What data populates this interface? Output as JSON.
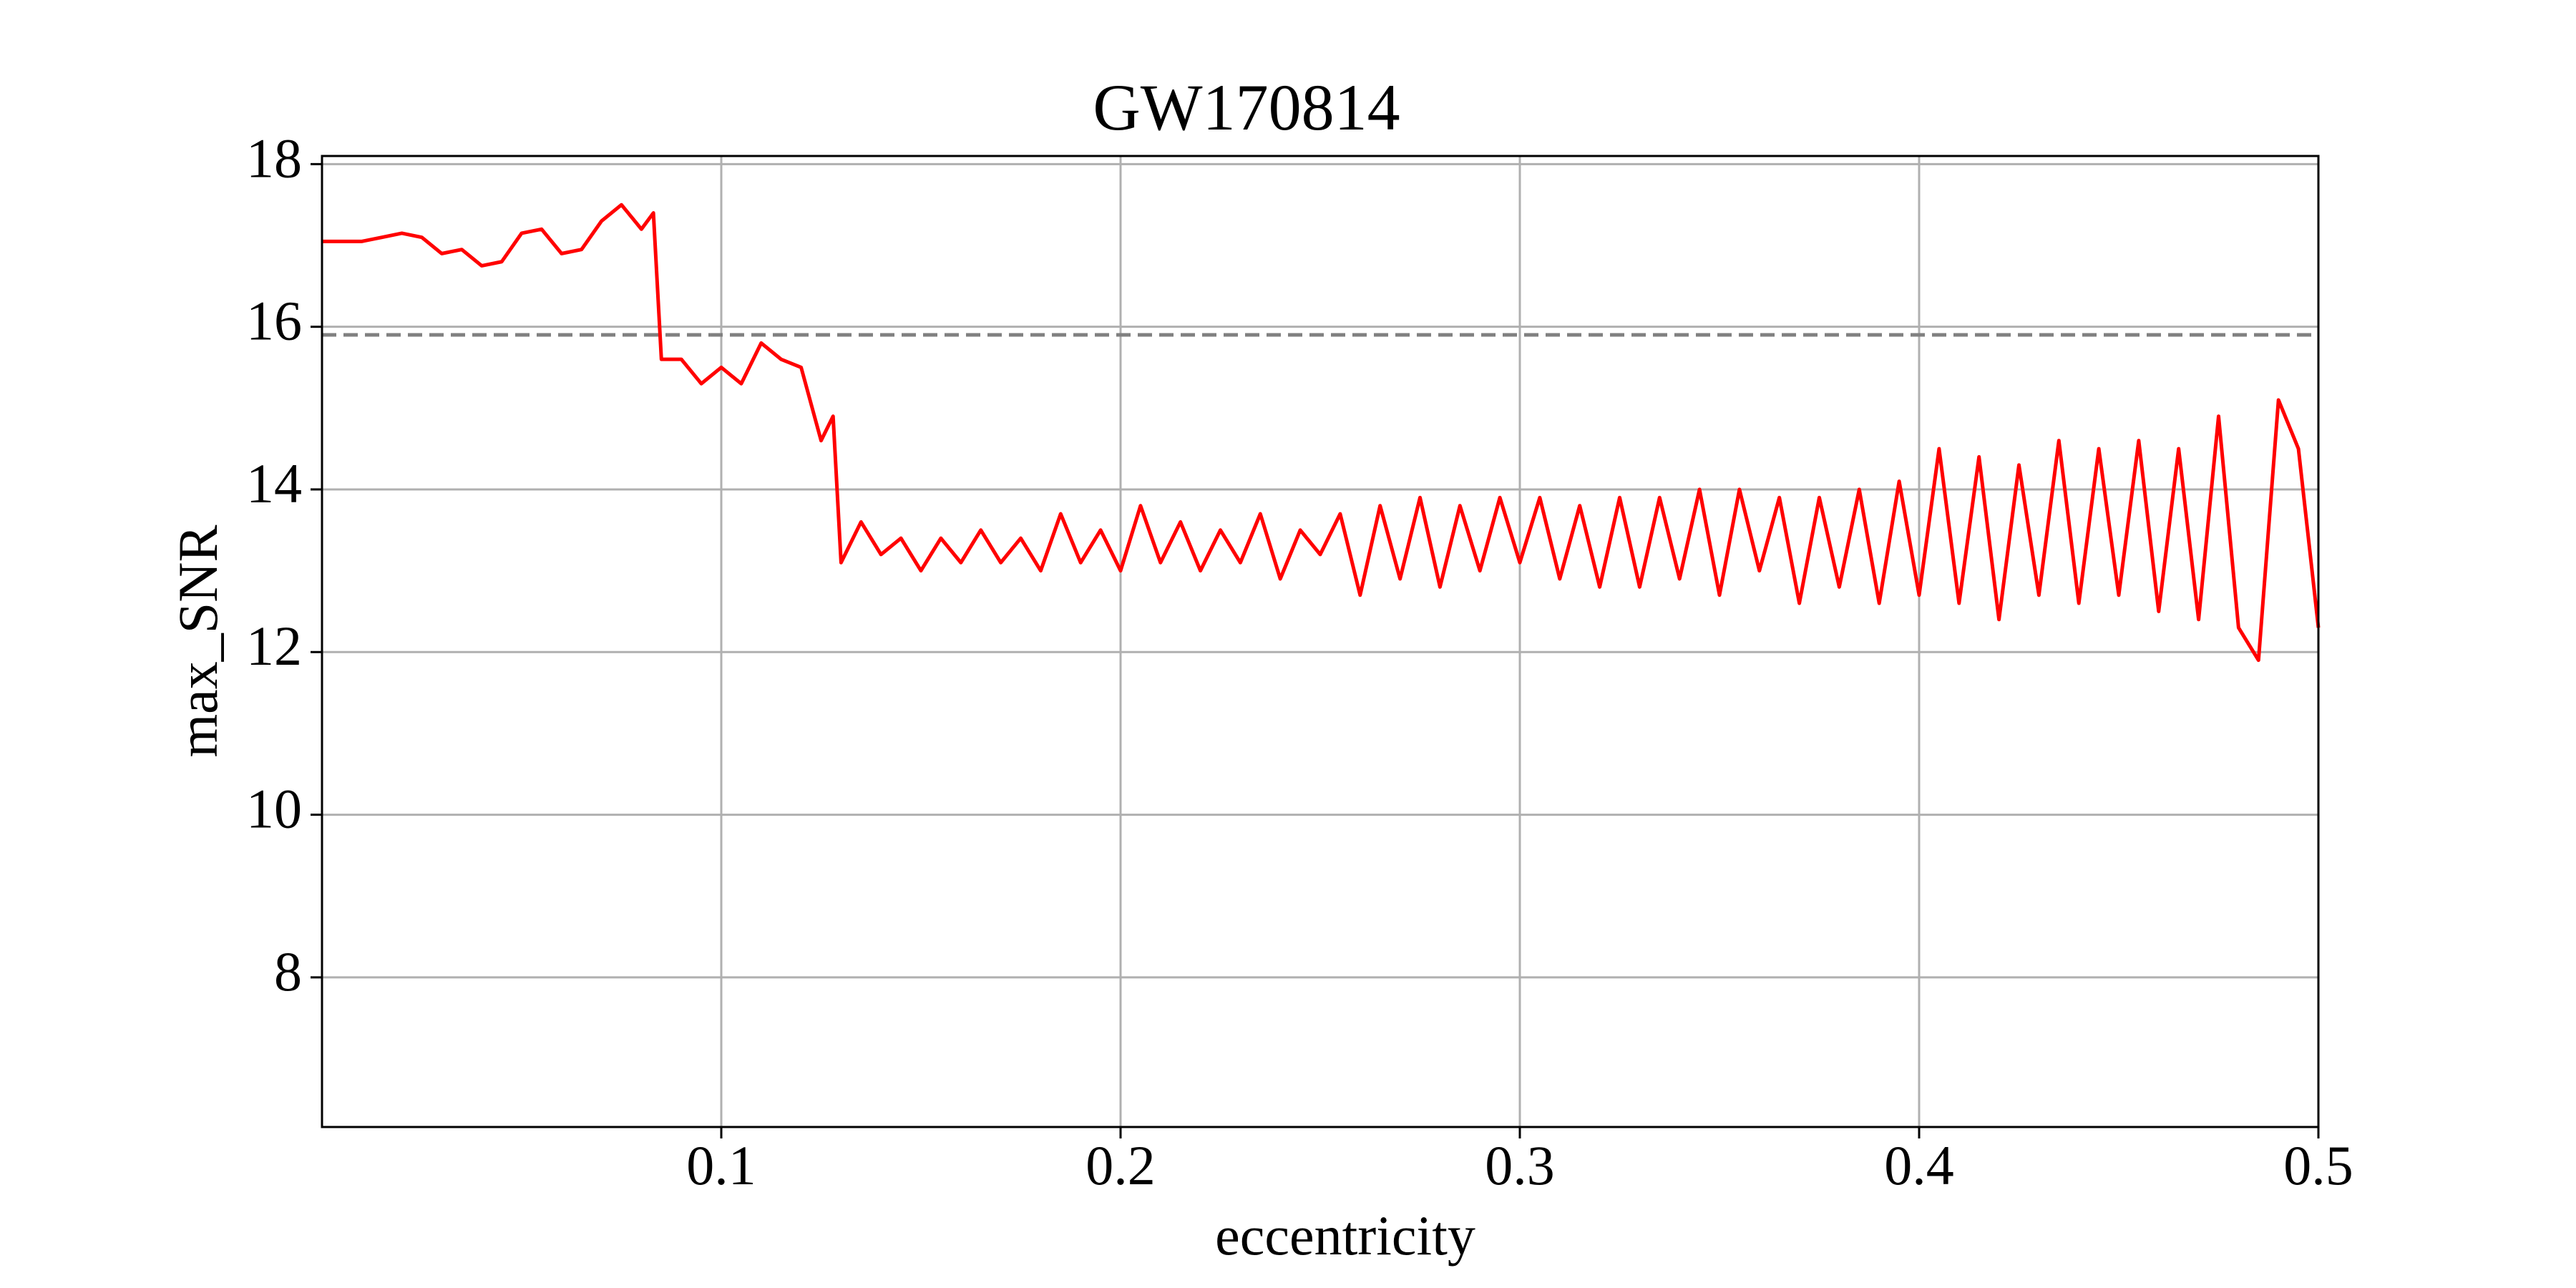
{
  "chart_data": {
    "type": "line",
    "title": "GW170814",
    "x_label": "eccentricity",
    "y_label": "max_SNR",
    "x": [
      0,
      0.005,
      0.01,
      0.015,
      0.02,
      0.025,
      0.03,
      0.035,
      0.04,
      0.045,
      0.05,
      0.055,
      0.06,
      0.065,
      0.07,
      0.075,
      0.08,
      0.083,
      0.085,
      0.09,
      0.095,
      0.1,
      0.105,
      0.11,
      0.115,
      0.12,
      0.125,
      0.128,
      0.13,
      0.135,
      0.14,
      0.145,
      0.15,
      0.155,
      0.16,
      0.165,
      0.17,
      0.175,
      0.18,
      0.185,
      0.19,
      0.195,
      0.2,
      0.205,
      0.21,
      0.215,
      0.22,
      0.225,
      0.23,
      0.235,
      0.24,
      0.245,
      0.25,
      0.255,
      0.26,
      0.265,
      0.27,
      0.275,
      0.28,
      0.285,
      0.29,
      0.295,
      0.3,
      0.305,
      0.31,
      0.315,
      0.32,
      0.325,
      0.33,
      0.335,
      0.34,
      0.345,
      0.35,
      0.355,
      0.36,
      0.365,
      0.37,
      0.375,
      0.38,
      0.385,
      0.39,
      0.395,
      0.4,
      0.405,
      0.41,
      0.415,
      0.42,
      0.425,
      0.43,
      0.435,
      0.44,
      0.445,
      0.45,
      0.455,
      0.46,
      0.465,
      0.47,
      0.475,
      0.48,
      0.485,
      0.49,
      0.495,
      0.5
    ],
    "series": [
      {
        "name": "max_SNR",
        "color": "#ff0000",
        "values": [
          17.05,
          17.05,
          17.05,
          17.1,
          17.15,
          17.1,
          16.9,
          16.95,
          16.75,
          16.8,
          17.15,
          17.2,
          16.9,
          16.95,
          17.3,
          17.5,
          17.2,
          17.4,
          15.6,
          15.6,
          15.3,
          15.5,
          15.3,
          15.8,
          15.6,
          15.5,
          14.6,
          14.9,
          13.1,
          13.6,
          13.2,
          13.4,
          13.0,
          13.4,
          13.1,
          13.5,
          13.1,
          13.4,
          13.0,
          13.7,
          13.1,
          13.5,
          13.0,
          13.8,
          13.1,
          13.6,
          13.0,
          13.5,
          13.1,
          13.7,
          12.9,
          13.5,
          13.2,
          13.7,
          12.7,
          13.8,
          12.9,
          13.9,
          12.8,
          13.8,
          13.0,
          13.9,
          13.1,
          13.9,
          12.9,
          13.8,
          12.8,
          13.9,
          12.8,
          13.9,
          12.9,
          14.0,
          12.7,
          14.0,
          13.0,
          13.9,
          12.6,
          13.9,
          12.8,
          14.0,
          12.6,
          14.1,
          12.7,
          14.5,
          12.6,
          14.4,
          12.4,
          14.3,
          12.7,
          14.6,
          12.6,
          14.5,
          12.7,
          14.6,
          12.5,
          14.5,
          12.4,
          14.9,
          12.3,
          11.9,
          15.1,
          14.5,
          12.3
        ]
      }
    ],
    "reference_line": {
      "value": 15.9,
      "color": "#808080"
    },
    "xlim": [
      0,
      0.5
    ],
    "xticks": [
      0.1,
      0.2,
      0.3,
      0.4,
      0.5
    ],
    "ylim": [
      6.16,
      18.1
    ],
    "yticks": [
      8,
      10,
      12,
      14,
      16,
      18
    ],
    "grid": true
  }
}
